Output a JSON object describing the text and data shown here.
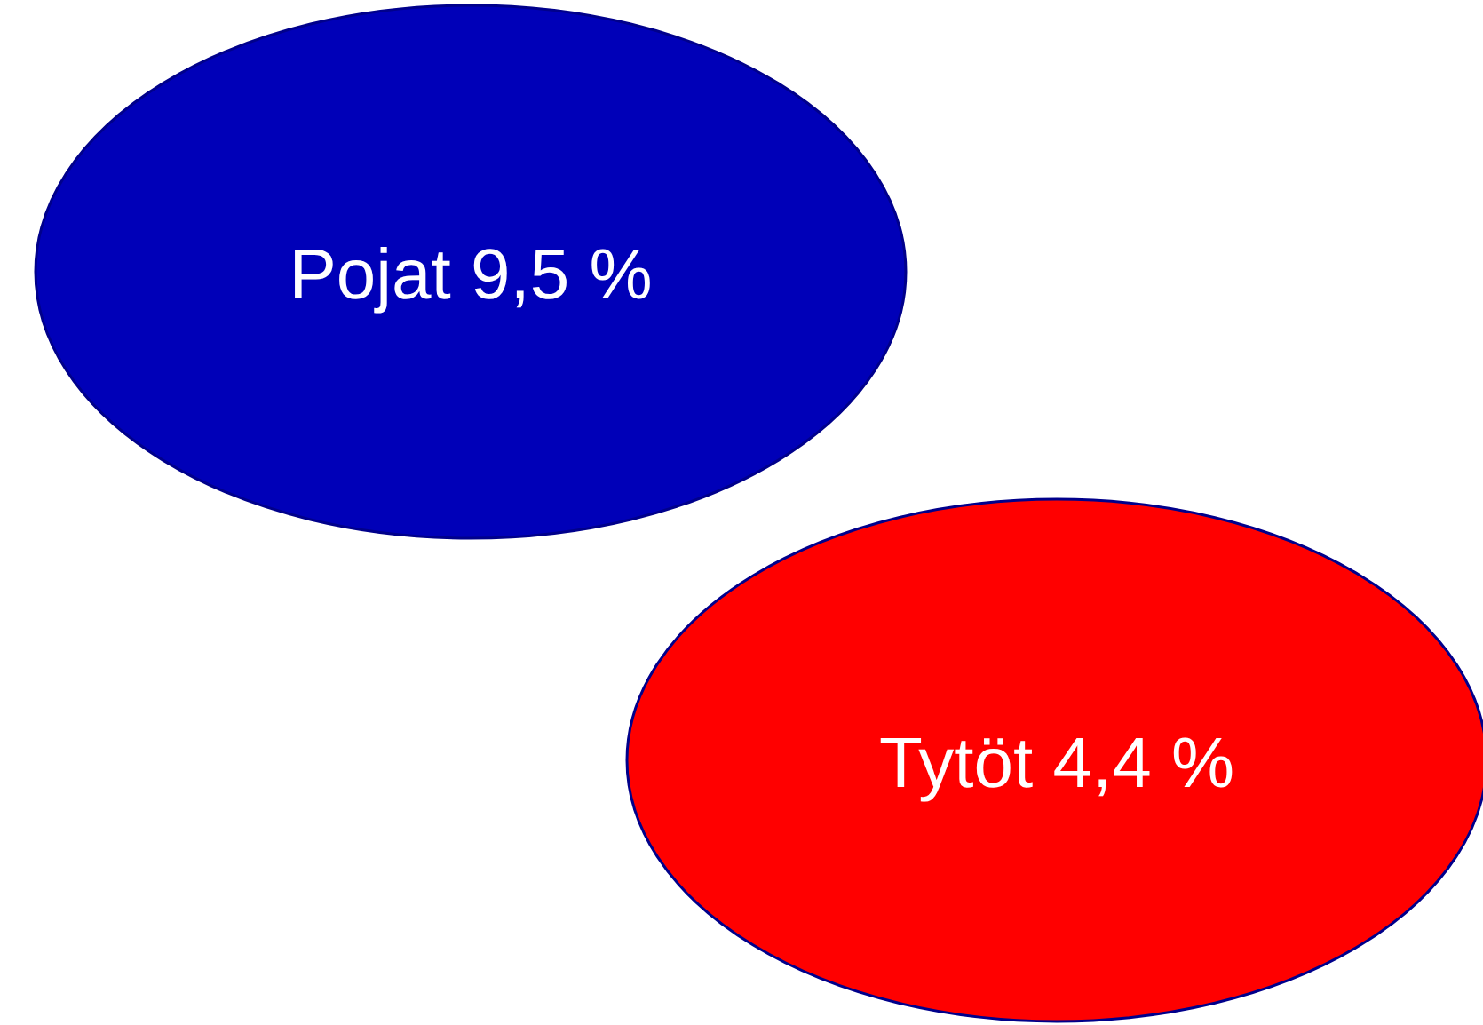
{
  "chart_data": {
    "type": "other",
    "categories": [
      "Pojat",
      "Tytöt"
    ],
    "values": [
      9.5,
      4.4
    ],
    "value_labels": [
      "9,5 %",
      "4,4 %"
    ],
    "colors": [
      "#0000b8",
      "#ff0000"
    ],
    "data_labels": true
  }
}
